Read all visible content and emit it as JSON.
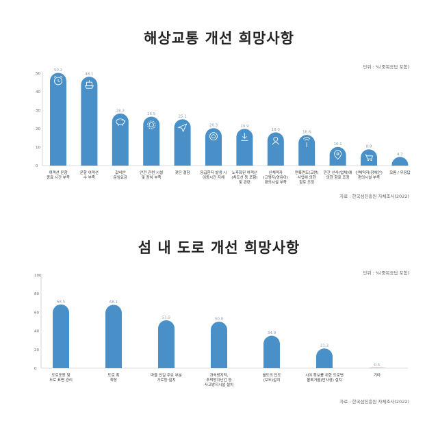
{
  "chart_data": [
    {
      "type": "bar",
      "title": "해상교통 개선 희망사항",
      "unit_note": "단위 : %(중복응답 포함)",
      "source": "자료 : 한국섬진흥원 자체조사(2022)",
      "ylim": [
        0,
        50
      ],
      "yticks": [
        0,
        10,
        20,
        30,
        40,
        50
      ],
      "bar_color": "#4a90c8",
      "icon_color": "#ffffff",
      "categories": [
        [
          "여객선 운항",
          "종료 시간 부족"
        ],
        [
          "운항 여객선",
          "수 부족"
        ],
        [
          "값비싼",
          "운임요금"
        ],
        [
          "안전 관련 시설",
          "및 장치 부족"
        ],
        [
          "잦은 결항"
        ],
        [
          "응급환자 발생 시",
          "이동시간 지체"
        ],
        [
          "노후화된 여객선",
          "(치도선 등 포함)",
          "및 관련"
        ],
        [
          "신체약자",
          "(고령자/영유아)",
          "편의시설 부족"
        ],
        [
          "연륙연도(교량)",
          "사업에 의한",
          "항로 조정"
        ],
        [
          "민간 선사(업체)에",
          "의한 항로 조정"
        ],
        [
          "신체약자(장애인)",
          "편의시설 부족"
        ],
        [
          "모름 / 무응답"
        ]
      ],
      "values": [
        50.2,
        48.1,
        28.2,
        26.5,
        25.1,
        20.3,
        19.9,
        18.0,
        16.6,
        10.1,
        8.8,
        4.7
      ],
      "value_labels": [
        "50.2",
        "48.1",
        "28.2",
        "26.5",
        "25.1",
        "20.3",
        "19.9",
        "18.0",
        "16.6",
        "10.1",
        "8.8",
        "4.7"
      ],
      "icons": [
        "alarm-clock",
        "ship",
        "piggy-bank",
        "gear",
        "paper-plane",
        "lifebuoy",
        "download-arrow",
        "person-baby",
        "antenna",
        "map-pin",
        "shopping-cart",
        "none"
      ]
    },
    {
      "type": "bar",
      "title": "섬 내 도로 개선 희망사항",
      "unit_note": "단위 : %(중복응답 포함)",
      "source": "자료 : 한국섬진흥원 자체조사(2022)",
      "ylim": [
        0,
        100
      ],
      "yticks": [
        0,
        20,
        40,
        60,
        80,
        100
      ],
      "bar_color": "#4a90c8",
      "categories": [
        [
          "도로포장 및",
          "도로 표면 관리"
        ],
        [
          "도로 폭",
          "확장"
        ],
        [
          "마을 안길 주요 부분",
          "가로등 설치"
        ],
        [
          "과속방지턱,",
          "추락방지난간 등",
          "사고방지시설 설치"
        ],
        [
          "별도의 인도",
          "(보도)설치"
        ],
        [
          "시야 확보를 위한 도로변",
          "볼록거울(반사경) 설치"
        ],
        [
          "기타"
        ]
      ],
      "values": [
        68.5,
        68.1,
        51.5,
        50.0,
        34.9,
        21.2,
        0.5
      ],
      "value_labels": [
        "68.5",
        "68.1",
        "51.5",
        "50.0",
        "34.9",
        "21.2",
        "0.5"
      ]
    }
  ]
}
